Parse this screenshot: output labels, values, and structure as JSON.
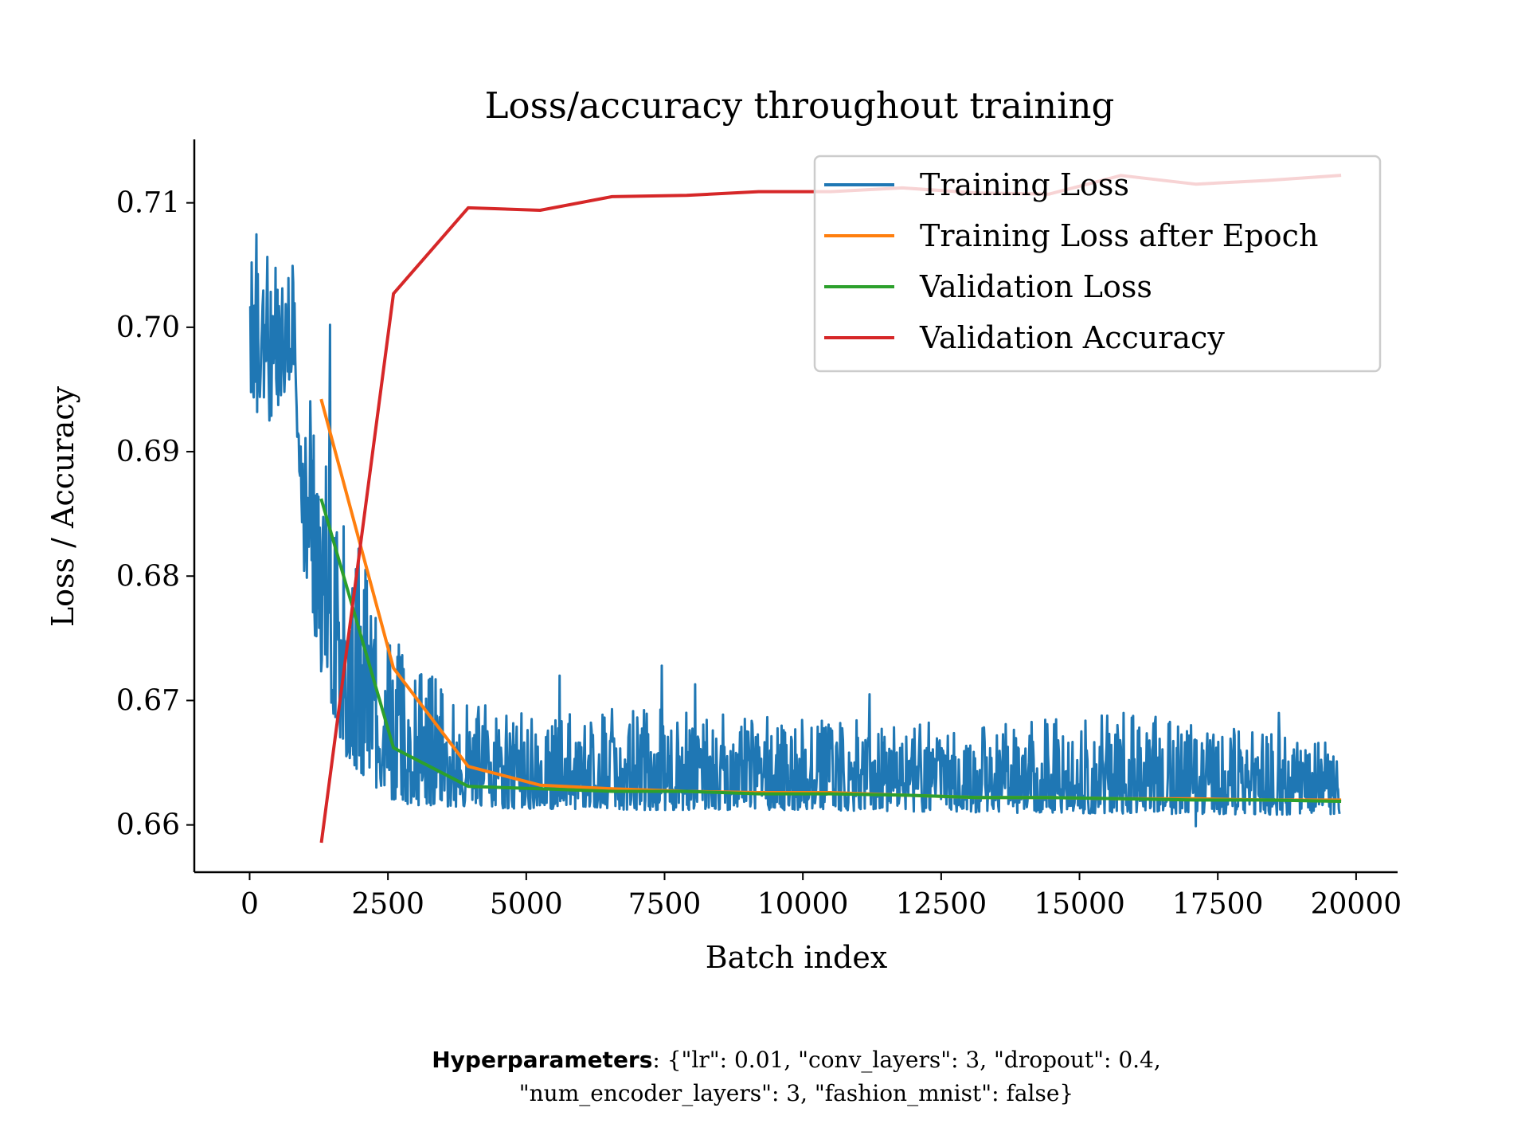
{
  "chart_data": {
    "type": "line",
    "title": "Loss/accuracy throughout training",
    "xlabel": "Batch index",
    "ylabel": "Loss / Accuracy",
    "xlim": [
      -1000,
      20750
    ],
    "ylim": [
      0.6562,
      0.7151
    ],
    "xticks": [
      0,
      2500,
      5000,
      7500,
      10000,
      12500,
      15000,
      17500,
      20000
    ],
    "xtick_labels": [
      "0",
      "2500",
      "5000",
      "7500",
      "10000",
      "12500",
      "15000",
      "17500",
      "20000"
    ],
    "yticks": [
      0.66,
      0.67,
      0.68,
      0.69,
      0.7,
      0.71
    ],
    "ytick_labels": [
      "0.66",
      "0.67",
      "0.68",
      "0.69",
      "0.70",
      "0.71"
    ],
    "grid": false,
    "legend_position": "top-right",
    "series": [
      {
        "name": "Training Loss",
        "color": "#1f77b4",
        "style": "noisy",
        "x": [
          0,
          300,
          800,
          1000,
          1300,
          1500,
          2000,
          2600,
          3000,
          4000,
          5000,
          7000,
          10000,
          13000,
          16000,
          19700
        ],
        "upper": [
          0.7085,
          0.7068,
          0.7055,
          0.695,
          0.6935,
          0.6895,
          0.682,
          0.6745,
          0.673,
          0.67,
          0.669,
          0.6695,
          0.6685,
          0.6682,
          0.669,
          0.6665
        ],
        "lower": [
          0.6945,
          0.6915,
          0.6965,
          0.679,
          0.672,
          0.667,
          0.664,
          0.6618,
          0.6616,
          0.6614,
          0.6613,
          0.6612,
          0.6612,
          0.661,
          0.6609,
          0.6608
        ],
        "spikes": [
          [
            1450,
            0.7002
          ],
          [
            2700,
            0.6745
          ],
          [
            5600,
            0.672
          ],
          [
            7450,
            0.6728
          ],
          [
            8050,
            0.6713
          ],
          [
            11200,
            0.6705
          ],
          [
            15800,
            0.669
          ],
          [
            18600,
            0.669
          ],
          [
            17100,
            0.6599
          ]
        ]
      },
      {
        "name": "Training Loss after Epoch",
        "color": "#ff7f0e",
        "x": [
          1300,
          2600,
          3950,
          5250,
          6550,
          7900,
          9200,
          10500,
          11800,
          13150,
          14450,
          15750,
          17100,
          18400,
          19700
        ],
        "y": [
          0.6941,
          0.6726,
          0.6647,
          0.6632,
          0.6629,
          0.6627,
          0.6626,
          0.6626,
          0.6624,
          0.6622,
          0.6622,
          0.6621,
          0.6621,
          0.662,
          0.662
        ]
      },
      {
        "name": "Validation Loss",
        "color": "#2ca02c",
        "x": [
          1300,
          2600,
          3950,
          5250,
          6550,
          7900,
          9200,
          10500,
          11800,
          13150,
          14450,
          15750,
          17100,
          18400,
          19700
        ],
        "y": [
          0.6861,
          0.6662,
          0.6631,
          0.6629,
          0.6627,
          0.6627,
          0.6625,
          0.6625,
          0.6624,
          0.6622,
          0.6622,
          0.6621,
          0.662,
          0.662,
          0.6619
        ]
      },
      {
        "name": "Validation Accuracy",
        "color": "#d62728",
        "x": [
          1300,
          2600,
          3950,
          5250,
          6550,
          7900,
          9200,
          10500,
          11800,
          13150,
          14450,
          15750,
          17100,
          18400,
          19700
        ],
        "y": [
          0.6587,
          0.7027,
          0.7096,
          0.7094,
          0.7105,
          0.7106,
          0.7109,
          0.7109,
          0.7112,
          0.7108,
          0.7107,
          0.7122,
          0.7115,
          0.7118,
          0.7122
        ]
      }
    ]
  },
  "caption": {
    "label": "Hyperparameters",
    "text": ": {\"lr\": 0.01, \"conv_layers\": 3, \"dropout\": 0.4, \"num_encoder_layers\": 3, \"fashion_mnist\": false}"
  }
}
